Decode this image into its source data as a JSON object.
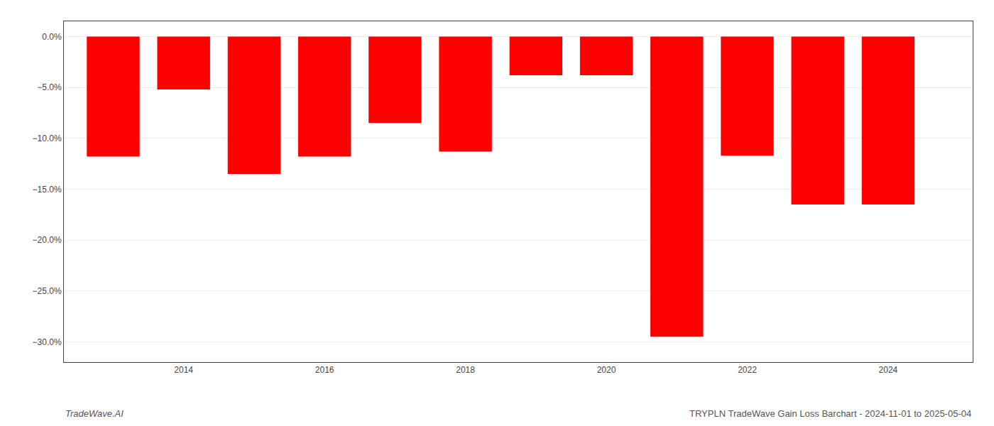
{
  "chart_data": {
    "type": "bar",
    "x": [
      2013,
      2014,
      2015,
      2016,
      2017,
      2018,
      2019,
      2020,
      2021,
      2022,
      2023,
      2024
    ],
    "values": [
      -0.118,
      -0.052,
      -0.135,
      -0.118,
      -0.085,
      -0.113,
      -0.038,
      -0.038,
      -0.295,
      -0.117,
      -0.165,
      -0.165
    ],
    "color": "#ff0000",
    "xlim": [
      2012.3,
      2025.2
    ],
    "xticks": [
      2014,
      2016,
      2018,
      2020,
      2022,
      2024
    ],
    "ylim": [
      -0.32,
      0.015
    ],
    "yticks": [
      {
        "value": 0.0,
        "label": "0.0%"
      },
      {
        "value": -0.05,
        "label": "−5.0%"
      },
      {
        "value": -0.1,
        "label": "−10.0%"
      },
      {
        "value": -0.15,
        "label": "−15.0%"
      },
      {
        "value": -0.2,
        "label": "−20.0%"
      },
      {
        "value": -0.25,
        "label": "−25.0%"
      },
      {
        "value": -0.3,
        "label": "−30.0%"
      }
    ],
    "grid": true,
    "annotations": [
      "TradeWave.AI",
      "TRYPLN TradeWave Gain Loss Barchart - 2024-11-01 to 2025-05-04"
    ]
  }
}
